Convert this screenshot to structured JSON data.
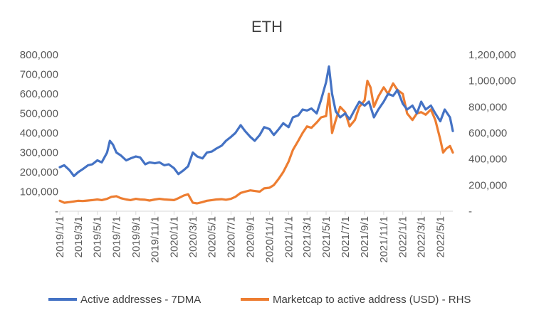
{
  "chart_data": {
    "type": "line",
    "title": "ETH",
    "xlabel": "",
    "ylabel": "",
    "grid": false,
    "legend_position": "bottom",
    "x_ticks": [
      "2019/1/1",
      "2019/3/1",
      "2019/5/1",
      "2019/7/1",
      "2019/9/1",
      "2019/11/1",
      "2020/1/1",
      "2020/3/1",
      "2020/5/1",
      "2020/7/1",
      "2020/9/1",
      "2020/11/1",
      "2021/1/1",
      "2021/3/1",
      "2021/5/1",
      "2021/7/1",
      "2021/9/1",
      "2021/11/1",
      "2022/1/1",
      "2022/3/1",
      "2022/5/1"
    ],
    "y_left": {
      "ylim": [
        0,
        800000
      ],
      "tick_labels": [
        "-",
        "100,000",
        "200,000",
        "300,000",
        "400,000",
        "500,000",
        "600,000",
        "700,000",
        "800,000"
      ]
    },
    "y_right": {
      "ylim": [
        0,
        1200000
      ],
      "tick_labels": [
        "-",
        "200,000",
        "400,000",
        "600,000",
        "800,000",
        "1,000,000",
        "1,200,000"
      ]
    },
    "x_range": [
      "2019/1/1",
      "2022/6/10"
    ],
    "series": [
      {
        "name": "Active addresses - 7DMA",
        "axis": "left",
        "color": "#4472C4",
        "x": [
          "2019/1/1",
          "2019/1/15",
          "2019/2/1",
          "2019/2/15",
          "2019/3/1",
          "2019/3/15",
          "2019/4/1",
          "2019/4/15",
          "2019/5/1",
          "2019/5/15",
          "2019/6/1",
          "2019/6/10",
          "2019/6/20",
          "2019/7/1",
          "2019/7/15",
          "2019/8/1",
          "2019/8/15",
          "2019/9/1",
          "2019/9/15",
          "2019/10/1",
          "2019/10/15",
          "2019/11/1",
          "2019/11/15",
          "2019/12/1",
          "2019/12/15",
          "2020/1/1",
          "2020/1/15",
          "2020/2/1",
          "2020/2/15",
          "2020/3/1",
          "2020/3/15",
          "2020/4/1",
          "2020/4/15",
          "2020/5/1",
          "2020/5/15",
          "2020/6/1",
          "2020/6/15",
          "2020/7/1",
          "2020/7/15",
          "2020/8/1",
          "2020/8/15",
          "2020/9/1",
          "2020/9/15",
          "2020/10/1",
          "2020/10/15",
          "2020/11/1",
          "2020/11/15",
          "2020/12/1",
          "2020/12/15",
          "2021/1/1",
          "2021/1/15",
          "2021/2/1",
          "2021/2/15",
          "2021/3/1",
          "2021/3/15",
          "2021/4/1",
          "2021/4/15",
          "2021/5/1",
          "2021/5/10",
          "2021/5/20",
          "2021/6/1",
          "2021/6/15",
          "2021/7/1",
          "2021/7/15",
          "2021/8/1",
          "2021/8/15",
          "2021/9/1",
          "2021/9/15",
          "2021/10/1",
          "2021/10/15",
          "2021/11/1",
          "2021/11/15",
          "2021/12/1",
          "2021/12/15",
          "2022/1/1",
          "2022/1/15",
          "2022/2/1",
          "2022/2/15",
          "2022/3/1",
          "2022/3/15",
          "2022/4/1",
          "2022/4/15",
          "2022/5/1",
          "2022/5/15",
          "2022/6/1",
          "2022/6/10"
        ],
        "values": [
          225000,
          235000,
          210000,
          180000,
          200000,
          215000,
          235000,
          240000,
          260000,
          250000,
          300000,
          360000,
          340000,
          300000,
          285000,
          260000,
          270000,
          280000,
          275000,
          240000,
          250000,
          245000,
          250000,
          235000,
          240000,
          220000,
          190000,
          210000,
          230000,
          300000,
          280000,
          270000,
          300000,
          305000,
          320000,
          335000,
          360000,
          380000,
          400000,
          440000,
          410000,
          380000,
          360000,
          390000,
          430000,
          420000,
          390000,
          420000,
          450000,
          430000,
          480000,
          490000,
          520000,
          515000,
          525000,
          500000,
          570000,
          660000,
          740000,
          600000,
          510000,
          480000,
          500000,
          470000,
          520000,
          560000,
          540000,
          560000,
          480000,
          520000,
          560000,
          600000,
          590000,
          620000,
          550000,
          520000,
          540000,
          500000,
          560000,
          520000,
          540000,
          500000,
          460000,
          520000,
          480000,
          410000
        ]
      },
      {
        "name": "Marketcap to active address (USD) - RHS",
        "axis": "right",
        "color": "#ED7D31",
        "x": [
          "2019/1/1",
          "2019/1/15",
          "2019/2/1",
          "2019/2/15",
          "2019/3/1",
          "2019/3/15",
          "2019/4/1",
          "2019/4/15",
          "2019/5/1",
          "2019/5/15",
          "2019/6/1",
          "2019/6/15",
          "2019/7/1",
          "2019/7/15",
          "2019/8/1",
          "2019/8/15",
          "2019/9/1",
          "2019/9/15",
          "2019/10/1",
          "2019/10/15",
          "2019/11/1",
          "2019/11/15",
          "2019/12/1",
          "2019/12/15",
          "2020/1/1",
          "2020/1/15",
          "2020/2/1",
          "2020/2/15",
          "2020/3/1",
          "2020/3/15",
          "2020/4/1",
          "2020/4/15",
          "2020/5/1",
          "2020/5/15",
          "2020/6/1",
          "2020/6/15",
          "2020/7/1",
          "2020/7/15",
          "2020/8/1",
          "2020/8/15",
          "2020/9/1",
          "2020/9/15",
          "2020/10/1",
          "2020/10/15",
          "2020/11/1",
          "2020/11/15",
          "2020/12/1",
          "2020/12/15",
          "2021/1/1",
          "2021/1/15",
          "2021/2/1",
          "2021/2/15",
          "2021/3/1",
          "2021/3/15",
          "2021/4/1",
          "2021/4/15",
          "2021/5/1",
          "2021/5/10",
          "2021/5/20",
          "2021/6/1",
          "2021/6/15",
          "2021/7/1",
          "2021/7/15",
          "2021/8/1",
          "2021/8/15",
          "2021/9/1",
          "2021/9/10",
          "2021/9/20",
          "2021/10/1",
          "2021/10/15",
          "2021/11/1",
          "2021/11/15",
          "2021/12/1",
          "2021/12/15",
          "2022/1/1",
          "2022/1/15",
          "2022/2/1",
          "2022/2/15",
          "2022/3/1",
          "2022/3/15",
          "2022/4/1",
          "2022/4/15",
          "2022/5/1",
          "2022/5/10",
          "2022/5/20",
          "2022/6/1",
          "2022/6/10"
        ],
        "values": [
          80000,
          65000,
          70000,
          75000,
          80000,
          78000,
          82000,
          85000,
          90000,
          85000,
          95000,
          110000,
          115000,
          100000,
          90000,
          85000,
          95000,
          90000,
          88000,
          82000,
          90000,
          95000,
          90000,
          88000,
          85000,
          100000,
          120000,
          130000,
          65000,
          60000,
          70000,
          80000,
          85000,
          90000,
          92000,
          88000,
          95000,
          110000,
          140000,
          150000,
          160000,
          155000,
          150000,
          175000,
          180000,
          200000,
          250000,
          300000,
          380000,
          470000,
          540000,
          600000,
          650000,
          640000,
          680000,
          720000,
          730000,
          900000,
          600000,
          700000,
          800000,
          760000,
          650000,
          700000,
          800000,
          850000,
          1000000,
          950000,
          800000,
          880000,
          950000,
          900000,
          980000,
          930000,
          900000,
          750000,
          700000,
          750000,
          760000,
          740000,
          780000,
          700000,
          550000,
          450000,
          480000,
          500000,
          450000
        ]
      }
    ]
  }
}
